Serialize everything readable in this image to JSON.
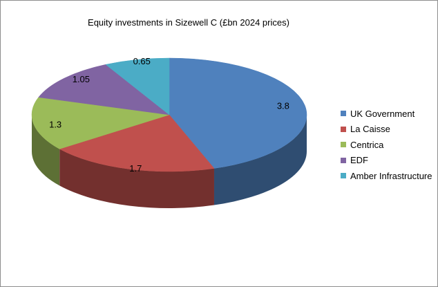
{
  "chart_data": {
    "type": "pie",
    "title": "Equity investments in Sizewell C (£bn 2024 prices)",
    "categories": [
      "UK Government",
      "La Caisse",
      "Centrica",
      "EDF",
      "Amber Infrastructure"
    ],
    "values": [
      3.8,
      1.7,
      1.3,
      1.05,
      0.65
    ],
    "value_labels": [
      "3.8",
      "1.7",
      "1.3",
      "1.05",
      "0.65"
    ],
    "colors": [
      "#4f81bd",
      "#c0504d",
      "#9bbb59",
      "#8064a2",
      "#4bacc6"
    ],
    "style": "3d",
    "legend_position": "right"
  }
}
